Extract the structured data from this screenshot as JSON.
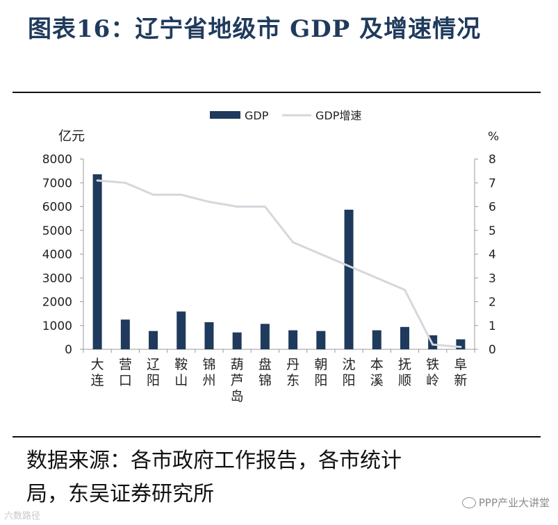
{
  "title": "图表16：辽宁省地级市 GDP 及增速情况",
  "source_line1": "数据来源：各市政府工作报告，各市统计",
  "source_line2": "局，东吴证券研究所",
  "watermark_left": "六数路径",
  "watermark_right": "PPP产业大讲堂",
  "colors": {
    "bar": "#1f3a5c",
    "line": "#d4d7dc",
    "axis": "#999999",
    "title": "#1f3a5c"
  },
  "chart_data": {
    "type": "bar",
    "categories": [
      [
        "大",
        "连"
      ],
      [
        "营",
        "口"
      ],
      [
        "辽",
        "阳"
      ],
      [
        "鞍",
        "山"
      ],
      [
        "锦",
        "州"
      ],
      [
        "葫",
        "芦",
        "岛"
      ],
      [
        "盘",
        "锦"
      ],
      [
        "丹",
        "东"
      ],
      [
        "朝",
        "阳"
      ],
      [
        "沈",
        "阳"
      ],
      [
        "本",
        "溪"
      ],
      [
        "抚",
        "顺"
      ],
      [
        "铁",
        "岭"
      ],
      [
        "阜",
        "新"
      ]
    ],
    "series": [
      {
        "name": "GDP",
        "type": "bar",
        "axis": "left",
        "values": [
          7360,
          1250,
          770,
          1590,
          1140,
          710,
          1070,
          800,
          770,
          5870,
          800,
          940,
          590,
          420
        ]
      },
      {
        "name": "GDP增速",
        "type": "line",
        "axis": "right",
        "values": [
          7.1,
          7.0,
          6.5,
          6.5,
          6.2,
          6.0,
          6.0,
          4.5,
          4.0,
          3.5,
          3.0,
          2.5,
          0.2,
          0.1
        ]
      }
    ],
    "ylabel_left": "亿元",
    "ylabel_right": "%",
    "ylim_left": [
      0,
      8000
    ],
    "ylim_right": [
      0,
      8
    ],
    "yticks_left": [
      "0",
      "1000",
      "2000",
      "3000",
      "4000",
      "5000",
      "6000",
      "7000",
      "8000"
    ],
    "yticks_right": [
      "0",
      "1",
      "2",
      "3",
      "4",
      "5",
      "6",
      "7",
      "8"
    ],
    "legend_position": "top-center",
    "grid": false
  }
}
